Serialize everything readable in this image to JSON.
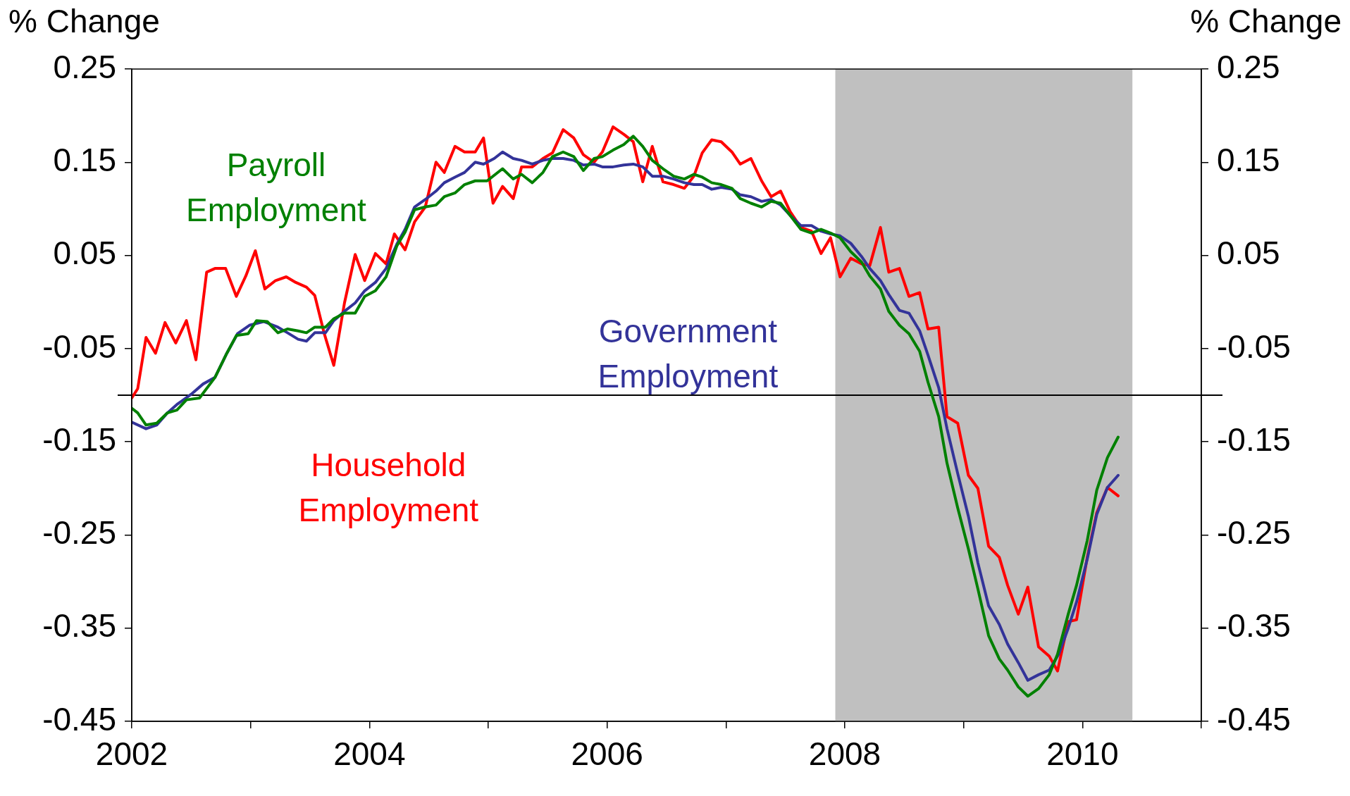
{
  "chart_data": {
    "type": "line",
    "ylabel": "% Change",
    "y2label": "% Change",
    "xlim": [
      2002,
      2011
    ],
    "xticks": [
      2002,
      {
        "value": 2003,
        "label": null
      },
      2004,
      {
        "value": 2005,
        "label": null
      },
      2006,
      {
        "value": 2007,
        "label": null
      },
      2008,
      {
        "value": 2009,
        "label": null
      },
      2010,
      {
        "value": 2011,
        "label": null
      }
    ],
    "ylim": [
      -0.45,
      0.25
    ],
    "yticks": [
      -0.45,
      -0.35,
      -0.25,
      -0.15,
      -0.05,
      0.05,
      0.15,
      0.25
    ],
    "y2lim": [
      -0.45,
      0.25
    ],
    "y2ticks": [
      -0.45,
      -0.35,
      -0.25,
      -0.15,
      -0.05,
      0.05,
      0.15,
      0.25
    ],
    "grid": false,
    "legend": false,
    "marker": "none",
    "line_style": "solid",
    "ref_lines": [
      {
        "axis": "y",
        "value": -0.1,
        "color": "#000000"
      }
    ],
    "bands": [
      {
        "axis": "x",
        "from": 2007.92,
        "to": 2010.42,
        "color": "#c0c0c0"
      }
    ],
    "annotations": [
      "Payroll Employment",
      "Government Employment",
      "Household Employment"
    ],
    "series": [
      {
        "color": "#008000",
        "x": [
          2002,
          2002.05,
          2002.12,
          2002.21,
          2002.3,
          2002.38,
          2002.46,
          2002.57,
          2002.7,
          2002.8,
          2002.88,
          2002.98,
          2003.05,
          2003.14,
          2003.23,
          2003.31,
          2003.4,
          2003.47,
          2003.54,
          2003.63,
          2003.7,
          2003.79,
          2003.88,
          2003.96,
          2004.05,
          2004.14,
          2004.23,
          2004.3,
          2004.38,
          2004.47,
          2004.56,
          2004.63,
          2004.72,
          2004.8,
          2004.89,
          2004.99,
          2005.12,
          2005.21,
          2005.28,
          2005.37,
          2005.46,
          2005.54,
          2005.63,
          2005.72,
          2005.8,
          2005.89,
          2005.96,
          2006.05,
          2006.14,
          2006.22,
          2006.3,
          2006.38,
          2006.47,
          2006.56,
          2006.65,
          2006.73,
          2006.8,
          2006.88,
          2006.96,
          2007.05,
          2007.12,
          2007.21,
          2007.3,
          2007.38,
          2007.46,
          2007.54,
          2007.63,
          2007.72,
          2007.8,
          2007.88,
          2007.96,
          2008.05,
          2008.14,
          2008.21,
          2008.3,
          2008.37,
          2008.46,
          2008.54,
          2008.63,
          2008.7,
          2008.79,
          2008.86,
          2008.95,
          2009.04,
          2009.12,
          2009.21,
          2009.3,
          2009.37,
          2009.46,
          2009.54,
          2009.63,
          2009.72,
          2009.79,
          2009.88,
          2009.95,
          2010.04,
          2010.12,
          2010.21,
          2010.3
        ],
        "values": [
          -0.114,
          -0.119,
          -0.132,
          -0.13,
          -0.119,
          -0.116,
          -0.105,
          -0.103,
          -0.081,
          -0.055,
          -0.036,
          -0.034,
          -0.02,
          -0.021,
          -0.033,
          -0.029,
          -0.031,
          -0.033,
          -0.027,
          -0.027,
          -0.018,
          -0.012,
          -0.012,
          0.006,
          0.012,
          0.027,
          0.06,
          0.075,
          0.099,
          0.102,
          0.104,
          0.113,
          0.117,
          0.126,
          0.13,
          0.13,
          0.143,
          0.132,
          0.137,
          0.128,
          0.139,
          0.156,
          0.161,
          0.156,
          0.141,
          0.154,
          0.156,
          0.163,
          0.169,
          0.178,
          0.167,
          0.152,
          0.143,
          0.135,
          0.132,
          0.137,
          0.134,
          0.128,
          0.126,
          0.122,
          0.111,
          0.106,
          0.102,
          0.108,
          0.106,
          0.093,
          0.078,
          0.074,
          0.078,
          0.074,
          0.069,
          0.054,
          0.043,
          0.028,
          0.014,
          -0.01,
          -0.025,
          -0.034,
          -0.053,
          -0.086,
          -0.123,
          -0.173,
          -0.221,
          -0.265,
          -0.308,
          -0.358,
          -0.383,
          -0.395,
          -0.413,
          -0.423,
          -0.415,
          -0.4,
          -0.378,
          -0.335,
          -0.304,
          -0.256,
          -0.202,
          -0.167,
          -0.145
        ]
      },
      {
        "color": "#333399",
        "x": [
          2002,
          2002.12,
          2002.21,
          2002.3,
          2002.38,
          2002.5,
          2002.6,
          2002.7,
          2002.8,
          2002.89,
          2002.99,
          2003.11,
          2003.23,
          2003.31,
          2003.4,
          2003.47,
          2003.54,
          2003.63,
          2003.7,
          2003.79,
          2003.88,
          2003.96,
          2004.05,
          2004.14,
          2004.23,
          2004.3,
          2004.38,
          2004.47,
          2004.56,
          2004.63,
          2004.72,
          2004.8,
          2004.89,
          2004.96,
          2005.05,
          2005.12,
          2005.21,
          2005.28,
          2005.37,
          2005.46,
          2005.54,
          2005.63,
          2005.72,
          2005.8,
          2005.89,
          2005.96,
          2006.05,
          2006.14,
          2006.22,
          2006.3,
          2006.38,
          2006.47,
          2006.56,
          2006.65,
          2006.73,
          2006.8,
          2006.88,
          2006.96,
          2007.05,
          2007.12,
          2007.21,
          2007.3,
          2007.38,
          2007.46,
          2007.54,
          2007.63,
          2007.72,
          2007.8,
          2007.88,
          2007.96,
          2008.05,
          2008.14,
          2008.21,
          2008.3,
          2008.37,
          2008.46,
          2008.54,
          2008.63,
          2008.7,
          2008.79,
          2008.86,
          2008.95,
          2009.04,
          2009.12,
          2009.21,
          2009.3,
          2009.37,
          2009.46,
          2009.54,
          2009.63,
          2009.72,
          2009.8,
          2009.88,
          2009.95,
          2010.04,
          2010.12,
          2010.21,
          2010.3
        ],
        "values": [
          -0.129,
          -0.136,
          -0.132,
          -0.119,
          -0.11,
          -0.099,
          -0.088,
          -0.081,
          -0.055,
          -0.034,
          -0.025,
          -0.021,
          -0.027,
          -0.033,
          -0.04,
          -0.042,
          -0.033,
          -0.033,
          -0.02,
          -0.01,
          -0.001,
          0.012,
          0.021,
          0.036,
          0.062,
          0.078,
          0.102,
          0.11,
          0.119,
          0.128,
          0.134,
          0.139,
          0.15,
          0.148,
          0.154,
          0.161,
          0.154,
          0.152,
          0.148,
          0.152,
          0.154,
          0.154,
          0.152,
          0.147,
          0.148,
          0.145,
          0.145,
          0.147,
          0.148,
          0.145,
          0.135,
          0.135,
          0.132,
          0.128,
          0.126,
          0.126,
          0.121,
          0.123,
          0.121,
          0.115,
          0.113,
          0.108,
          0.11,
          0.104,
          0.093,
          0.082,
          0.082,
          0.076,
          0.073,
          0.071,
          0.063,
          0.049,
          0.036,
          0.023,
          0.008,
          -0.009,
          -0.012,
          -0.031,
          -0.057,
          -0.092,
          -0.136,
          -0.184,
          -0.23,
          -0.28,
          -0.326,
          -0.346,
          -0.367,
          -0.387,
          -0.406,
          -0.4,
          -0.395,
          -0.378,
          -0.35,
          -0.322,
          -0.276,
          -0.228,
          -0.199,
          -0.186
        ]
      },
      {
        "color": "#ff0000",
        "x": [
          2002,
          2002.05,
          2002.12,
          2002.2,
          2002.28,
          2002.37,
          2002.46,
          2002.54,
          2002.63,
          2002.7,
          2002.79,
          2002.88,
          2002.96,
          2003.04,
          2003.12,
          2003.21,
          2003.3,
          2003.38,
          2003.47,
          2003.54,
          2003.62,
          2003.7,
          2003.79,
          2003.88,
          2003.96,
          2004.05,
          2004.14,
          2004.21,
          2004.3,
          2004.38,
          2004.47,
          2004.56,
          2004.63,
          2004.72,
          2004.8,
          2004.89,
          2004.96,
          2005.04,
          2005.12,
          2005.21,
          2005.28,
          2005.37,
          2005.46,
          2005.54,
          2005.63,
          2005.72,
          2005.8,
          2005.89,
          2005.96,
          2006.05,
          2006.14,
          2006.22,
          2006.3,
          2006.38,
          2006.47,
          2006.56,
          2006.65,
          2006.73,
          2006.8,
          2006.88,
          2006.96,
          2007.05,
          2007.12,
          2007.21,
          2007.3,
          2007.38,
          2007.46,
          2007.54,
          2007.63,
          2007.72,
          2007.8,
          2007.88,
          2007.96,
          2008.05,
          2008.14,
          2008.21,
          2008.3,
          2008.37,
          2008.46,
          2008.54,
          2008.63,
          2008.7,
          2008.79,
          2008.86,
          2008.95,
          2009.04,
          2009.12,
          2009.21,
          2009.3,
          2009.37,
          2009.46,
          2009.54,
          2009.63,
          2009.72,
          2009.79,
          2009.88,
          2009.95,
          2010.04,
          2010.12,
          2010.21,
          2010.3
        ],
        "values": [
          -0.103,
          -0.093,
          -0.038,
          -0.055,
          -0.022,
          -0.044,
          -0.02,
          -0.062,
          0.032,
          0.036,
          0.036,
          0.006,
          0.028,
          0.055,
          0.014,
          0.023,
          0.027,
          0.021,
          0.016,
          0.007,
          -0.034,
          -0.068,
          -0.001,
          0.051,
          0.023,
          0.052,
          0.041,
          0.073,
          0.056,
          0.086,
          0.102,
          0.15,
          0.139,
          0.167,
          0.161,
          0.161,
          0.176,
          0.106,
          0.124,
          0.111,
          0.145,
          0.145,
          0.154,
          0.16,
          0.185,
          0.176,
          0.158,
          0.15,
          0.161,
          0.188,
          0.18,
          0.172,
          0.129,
          0.167,
          0.129,
          0.126,
          0.122,
          0.135,
          0.16,
          0.174,
          0.172,
          0.161,
          0.148,
          0.154,
          0.13,
          0.113,
          0.119,
          0.097,
          0.08,
          0.076,
          0.052,
          0.069,
          0.027,
          0.047,
          0.041,
          0.039,
          0.08,
          0.032,
          0.036,
          0.006,
          0.01,
          -0.029,
          -0.027,
          -0.123,
          -0.13,
          -0.186,
          -0.2,
          -0.262,
          -0.274,
          -0.304,
          -0.335,
          -0.306,
          -0.37,
          -0.38,
          -0.396,
          -0.343,
          -0.341,
          -0.274,
          -0.226,
          -0.199,
          -0.208
        ]
      }
    ]
  }
}
